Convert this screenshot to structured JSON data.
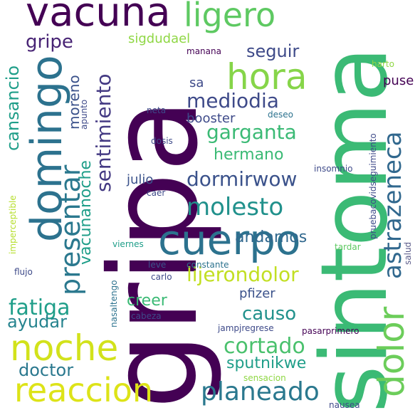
{
  "palette": {
    "dark_purple": "#440154",
    "indigo": "#3b528b",
    "teal_blue": "#2c728e",
    "teal": "#21918c",
    "green_teal": "#28ae80",
    "green": "#5ec962",
    "light_green": "#8fd744",
    "yellow_green": "#c8e020",
    "yellow": "#fde725"
  },
  "words": {
    "gripa": "gripa",
    "sintoma": "sintoma",
    "vacuna": "vacuna",
    "ligero": "ligero",
    "cuerpo": "cuerpo",
    "reaccion": "reaccion",
    "noche": "noche",
    "domingo": "domingo",
    "hora": "hora",
    "planeado": "planeado",
    "dolor": "dolor",
    "astrazeneca": "astrazeneca",
    "presentar": "presentar",
    "molesto": "molesto",
    "cortado": "cortado",
    "garganta": "garganta",
    "mediodia": "mediodia",
    "dormirwow": "dormirwow",
    "fatiga": "fatiga",
    "lijerondolor": "lijerondolor",
    "sentimiento": "sentimiento",
    "cansancio": "cansancio",
    "gripe": "gripe",
    "seguir": "seguir",
    "causo": "causo",
    "ayudar": "ayudar",
    "doctor": "doctor",
    "sputnikwe": "sputnikwe",
    "hermano": "hermano",
    "andamos": "andamos",
    "creer": "creer",
    "vacunanoche": "vacunanoche",
    "moreno": "moreno",
    "booster": "booster",
    "julio": "julio",
    "puse": "puse",
    "sa": "sa",
    "pfizer": "pfizer",
    "sigdudael": "sigdudael",
    "manana": "manana",
    "apunto": "apunto",
    "neta": "neta",
    "deseo": "deseo",
    "dosis": "dosis",
    "caer": "caer",
    "insomnio": "insomnio",
    "harto": "harto",
    "pruebacovidseguimiento": "pruebacovidseguimiento",
    "imperceptible": "imperceptible",
    "viernes": "viernes",
    "leve": "leve",
    "constante": "constante",
    "carlo": "carlo",
    "tardar": "tardar",
    "salud": "salud",
    "flujo": "flujo",
    "nasaltengo": "nasaltengo",
    "cabeza": "cabeza",
    "jampjregrese": "jampjregrese",
    "pasarprimero": "pasarprimero",
    "sensacion": "sensacion",
    "nausea": "nausea"
  }
}
